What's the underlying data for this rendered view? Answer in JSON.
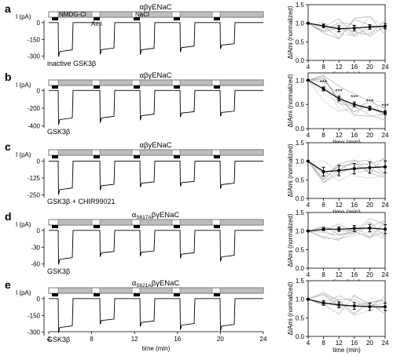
{
  "figure": {
    "time_axis": {
      "label": "time (min)",
      "ticks": [
        "4",
        "8",
        "12",
        "16",
        "20",
        "24"
      ]
    },
    "bar_labels": {
      "nmdg": "NMDG-Cl",
      "nacl": "NaCl",
      "ami": "Ami"
    },
    "current_axis_label": "I (pA)",
    "summary_xlabel": "time (min)",
    "summary_xticks": [
      "4",
      "8",
      "12",
      "16",
      "20",
      "24"
    ]
  },
  "chart_data": [
    {
      "panel": "a",
      "type": "line",
      "construct": "αβγENaC",
      "condition": "inactive GSK3β",
      "trace": {
        "ylabel": "I (pA)",
        "yticks": [
          "0",
          "-150",
          "-300"
        ],
        "ylim": [
          -330,
          20
        ]
      },
      "summary": {
        "ylabel": "ΔIAmi (normalized)",
        "yticks": [
          "1.5",
          "1.0",
          "0.5",
          "0.0"
        ],
        "ylim": [
          0,
          1.5
        ],
        "x": [
          4,
          8,
          12,
          16,
          20,
          24
        ],
        "mean": [
          1.0,
          0.93,
          0.85,
          0.87,
          0.9,
          0.92
        ],
        "sem": [
          0,
          0.05,
          0.08,
          0.07,
          0.06,
          0.07
        ],
        "stars": []
      }
    },
    {
      "panel": "b",
      "type": "line",
      "construct": "αβγENaC",
      "condition": "GSK3β",
      "trace": {
        "ylabel": "I (pA)",
        "yticks": [
          "0",
          "-200",
          "-400"
        ],
        "ylim": [
          -420,
          20
        ]
      },
      "summary": {
        "ylabel": "ΔIAmi (normalized)",
        "yticks": [
          "1.0",
          "0.5",
          "0.0"
        ],
        "ylim": [
          0,
          1.15
        ],
        "x": [
          4,
          8,
          12,
          16,
          20,
          24
        ],
        "mean": [
          1.0,
          0.82,
          0.62,
          0.5,
          0.42,
          0.33
        ],
        "sem": [
          0,
          0.04,
          0.05,
          0.05,
          0.04,
          0.04
        ],
        "stars": [
          "***",
          "***",
          "***",
          "***",
          "***"
        ]
      }
    },
    {
      "panel": "c",
      "type": "line",
      "construct": "αβγENaC",
      "condition": "GSK3β + CHIR99021",
      "trace": {
        "ylabel": "I (pA)",
        "yticks": [
          "0",
          "-125",
          "-250"
        ],
        "ylim": [
          -270,
          20
        ]
      },
      "summary": {
        "ylabel": "ΔIAmi (normalized)",
        "yticks": [
          "1.5",
          "1.0",
          "0.5",
          "0.0"
        ],
        "ylim": [
          0,
          1.5
        ],
        "x": [
          4,
          8,
          12,
          16,
          20,
          24
        ],
        "mean": [
          1.0,
          0.72,
          0.75,
          0.8,
          0.83,
          0.85
        ],
        "sem": [
          0,
          0.12,
          0.14,
          0.14,
          0.15,
          0.16
        ],
        "stars": []
      }
    },
    {
      "panel": "d",
      "type": "line",
      "construct": "αS617AβγENaC",
      "construct_parts": {
        "alpha": "α",
        "mutation": "S617A",
        "rest": "βγENaC"
      },
      "condition": "GSK3β",
      "trace": {
        "ylabel": "I (pA)",
        "yticks": [
          "0",
          "-30",
          "-60"
        ],
        "ylim": [
          -66,
          4
        ]
      },
      "summary": {
        "ylabel": "ΔIAmi (normalized)",
        "yticks": [
          "1.5",
          "1.0",
          "0.5",
          "0.0"
        ],
        "ylim": [
          0,
          1.5
        ],
        "x": [
          4,
          8,
          12,
          16,
          20,
          24
        ],
        "mean": [
          1.0,
          1.05,
          1.05,
          1.07,
          1.08,
          1.05
        ],
        "sem": [
          0,
          0.04,
          0.06,
          0.08,
          0.1,
          0.12
        ],
        "stars": []
      }
    },
    {
      "panel": "e",
      "type": "line",
      "construct": "αS621AβγENaC",
      "construct_parts": {
        "alpha": "α",
        "mutation": "S621A",
        "rest": "βγENaC"
      },
      "condition": "GSK3β",
      "trace": {
        "ylabel": "I (pA)",
        "yticks": [
          "0",
          "-150",
          "-300"
        ],
        "ylim": [
          -330,
          20
        ]
      },
      "summary": {
        "ylabel": "ΔIAmi (normalized)",
        "yticks": [
          "1.5",
          "1.0",
          "0.5",
          "0.0"
        ],
        "ylim": [
          0,
          1.5
        ],
        "x": [
          4,
          8,
          12,
          16,
          20,
          24
        ],
        "mean": [
          1.0,
          0.9,
          0.85,
          0.82,
          0.8,
          0.8
        ],
        "sem": [
          0,
          0.06,
          0.08,
          0.09,
          0.1,
          0.1
        ],
        "stars": []
      }
    }
  ]
}
